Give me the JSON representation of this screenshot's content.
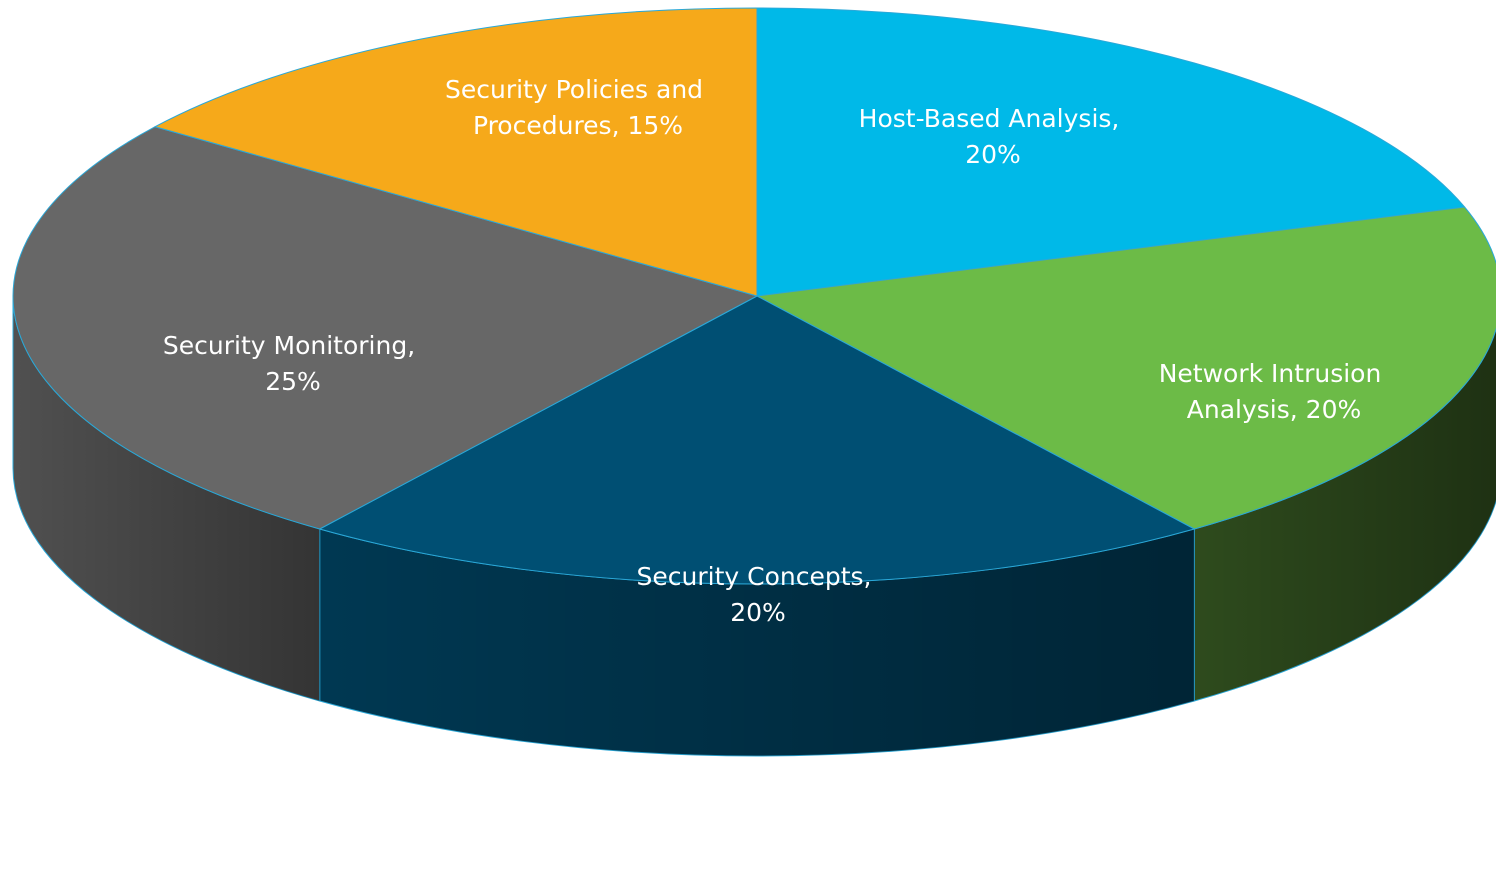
{
  "chart_data": {
    "type": "pie",
    "style": "3d",
    "start_angle_deg": 90,
    "direction": "clockwise",
    "slices": [
      {
        "label": "Host-Based Analysis",
        "value": 20,
        "display": "20%",
        "color": "#00B9E8",
        "side_color": "#00799A"
      },
      {
        "label": "Network Intrusion Analysis",
        "value": 20,
        "display": "20%",
        "color": "#6CBB47",
        "side_color": "#2E4B1D"
      },
      {
        "label": "Security Concepts",
        "value": 20,
        "display": "20%",
        "color": "#004F73",
        "side_color": "#003852"
      },
      {
        "label": "Security Monitoring",
        "value": 25,
        "display": "25%",
        "color": "#676767",
        "side_color": "#505050"
      },
      {
        "label": "Security Policies and Procedures",
        "value": 15,
        "display": "15%",
        "color": "#F6A91A",
        "side_color": "#A8700E"
      }
    ],
    "edge_color": "#2AA8D8"
  },
  "labels": [
    {
      "line1": "Host-Based Analysis,",
      "line2": "20%"
    },
    {
      "line1": "Network Intrusion",
      "line2": "Analysis, 20%"
    },
    {
      "line1": "Security Concepts,",
      "line2": "20%"
    },
    {
      "line1": "Security Monitoring,",
      "line2": "25%"
    },
    {
      "line1": "Security Policies and",
      "line2": "Procedures, 15%"
    }
  ]
}
